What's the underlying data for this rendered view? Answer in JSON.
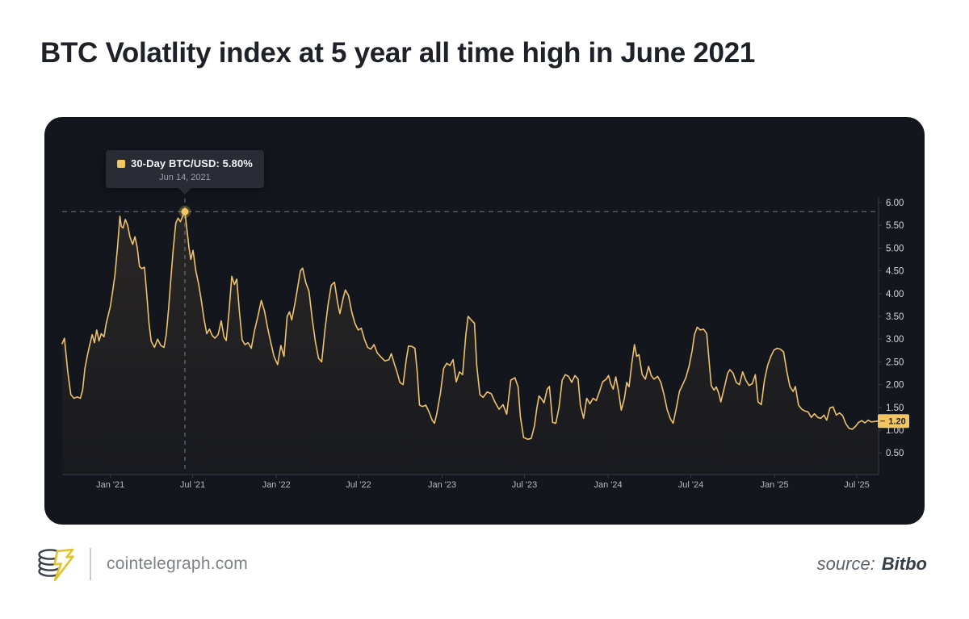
{
  "title": "BTC Volatlity index at 5 year all time high in June 2021",
  "footer": {
    "brand": "cointelegraph.com",
    "logo": "cointelegraph-coin-lightning",
    "source_label": "source:",
    "source_value": "Bitbo"
  },
  "chart_data": {
    "type": "line",
    "series_name": "30-Day BTC/USD",
    "x_range": [
      "2020-09-17",
      "2025-08-18"
    ],
    "ylim": [
      0,
      6.35
    ],
    "grid": false,
    "legend_position": "tooltip",
    "y_ticks": [
      {
        "label": "6.00",
        "value": 6.0
      },
      {
        "label": "5.50",
        "value": 5.5
      },
      {
        "label": "5.00",
        "value": 5.0
      },
      {
        "label": "4.50",
        "value": 4.5
      },
      {
        "label": "4.00",
        "value": 4.0
      },
      {
        "label": "3.50",
        "value": 3.5
      },
      {
        "label": "3.00",
        "value": 3.0
      },
      {
        "label": "2.50",
        "value": 2.5
      },
      {
        "label": "2.00",
        "value": 2.0
      },
      {
        "label": "1.50",
        "value": 1.5
      },
      {
        "label": "1.00",
        "value": 1.0
      },
      {
        "label": "0.50",
        "value": 0.5
      }
    ],
    "x_ticks": [
      {
        "label": "Jan '21",
        "date": "2021-01-01"
      },
      {
        "label": "Jul '21",
        "date": "2021-07-01"
      },
      {
        "label": "Jan '22",
        "date": "2022-01-01"
      },
      {
        "label": "Jul '22",
        "date": "2022-07-01"
      },
      {
        "label": "Jan '23",
        "date": "2023-01-01"
      },
      {
        "label": "Jul '23",
        "date": "2023-07-01"
      },
      {
        "label": "Jan '24",
        "date": "2024-01-01"
      },
      {
        "label": "Jul '24",
        "date": "2024-07-01"
      },
      {
        "label": "Jan '25",
        "date": "2025-01-01"
      },
      {
        "label": "Jul '25",
        "date": "2025-07-01"
      }
    ],
    "highlight": {
      "tooltip_label": "30-Day BTC/USD: 5.80%",
      "tooltip_date": "Jun 14, 2021",
      "date": "2021-06-14",
      "value": 5.8
    },
    "last_value_badge": {
      "label": "1.20",
      "value": 1.2
    },
    "colors": {
      "panel_bg": "#14161d",
      "line": "#edc26c",
      "marker": "#f3c75f",
      "badge_bg": "#f2c560",
      "badge_text": "#1d1f24",
      "axis": "#383c45",
      "tick_text": "#d6d8dd",
      "x_tick_text": "#b7bac2",
      "crosshair": "#9ca3af"
    },
    "points": [
      [
        "2020-09-17",
        2.9
      ],
      [
        "2020-09-22",
        3.02
      ],
      [
        "2020-09-29",
        2.3
      ],
      [
        "2020-10-06",
        1.78
      ],
      [
        "2020-10-13",
        1.7
      ],
      [
        "2020-10-20",
        1.73
      ],
      [
        "2020-10-27",
        1.7
      ],
      [
        "2020-11-01",
        1.88
      ],
      [
        "2020-11-06",
        2.35
      ],
      [
        "2020-11-11",
        2.62
      ],
      [
        "2020-11-16",
        2.85
      ],
      [
        "2020-11-22",
        3.1
      ],
      [
        "2020-11-27",
        2.92
      ],
      [
        "2020-12-02",
        3.2
      ],
      [
        "2020-12-07",
        2.96
      ],
      [
        "2020-12-12",
        3.12
      ],
      [
        "2020-12-18",
        3.05
      ],
      [
        "2020-12-23",
        3.35
      ],
      [
        "2021-01-01",
        3.72
      ],
      [
        "2021-01-06",
        4.05
      ],
      [
        "2021-01-11",
        4.4
      ],
      [
        "2021-01-17",
        5.05
      ],
      [
        "2021-01-22",
        5.7
      ],
      [
        "2021-01-25",
        5.48
      ],
      [
        "2021-01-29",
        5.44
      ],
      [
        "2021-02-03",
        5.63
      ],
      [
        "2021-02-08",
        5.5
      ],
      [
        "2021-02-13",
        5.25
      ],
      [
        "2021-02-19",
        5.08
      ],
      [
        "2021-02-24",
        5.25
      ],
      [
        "2021-03-01",
        5.02
      ],
      [
        "2021-03-06",
        4.6
      ],
      [
        "2021-03-11",
        4.55
      ],
      [
        "2021-03-17",
        4.58
      ],
      [
        "2021-03-22",
        4.0
      ],
      [
        "2021-03-27",
        3.35
      ],
      [
        "2021-04-01",
        2.95
      ],
      [
        "2021-04-08",
        2.82
      ],
      [
        "2021-04-15",
        3.0
      ],
      [
        "2021-04-22",
        2.86
      ],
      [
        "2021-04-29",
        2.82
      ],
      [
        "2021-05-04",
        3.1
      ],
      [
        "2021-05-09",
        3.65
      ],
      [
        "2021-05-14",
        4.3
      ],
      [
        "2021-05-19",
        4.95
      ],
      [
        "2021-05-25",
        5.55
      ],
      [
        "2021-05-30",
        5.66
      ],
      [
        "2021-06-04",
        5.58
      ],
      [
        "2021-06-09",
        5.7
      ],
      [
        "2021-06-14",
        5.8
      ],
      [
        "2021-06-18",
        5.45
      ],
      [
        "2021-06-23",
        5.0
      ],
      [
        "2021-06-27",
        4.75
      ],
      [
        "2021-07-02",
        4.95
      ],
      [
        "2021-07-08",
        4.5
      ],
      [
        "2021-07-14",
        4.22
      ],
      [
        "2021-07-20",
        3.85
      ],
      [
        "2021-07-26",
        3.45
      ],
      [
        "2021-08-01",
        3.12
      ],
      [
        "2021-08-07",
        3.22
      ],
      [
        "2021-08-13",
        3.08
      ],
      [
        "2021-08-19",
        3.02
      ],
      [
        "2021-08-26",
        3.1
      ],
      [
        "2021-09-02",
        3.4
      ],
      [
        "2021-09-08",
        3.05
      ],
      [
        "2021-09-13",
        2.97
      ],
      [
        "2021-09-19",
        3.6
      ],
      [
        "2021-09-25",
        4.38
      ],
      [
        "2021-10-01",
        4.2
      ],
      [
        "2021-10-06",
        4.32
      ],
      [
        "2021-10-12",
        3.6
      ],
      [
        "2021-10-18",
        2.98
      ],
      [
        "2021-10-24",
        2.88
      ],
      [
        "2021-10-31",
        2.92
      ],
      [
        "2021-11-07",
        2.8
      ],
      [
        "2021-11-14",
        3.18
      ],
      [
        "2021-11-22",
        3.52
      ],
      [
        "2021-11-29",
        3.85
      ],
      [
        "2021-12-06",
        3.62
      ],
      [
        "2021-12-13",
        3.25
      ],
      [
        "2021-12-20",
        2.92
      ],
      [
        "2021-12-27",
        2.62
      ],
      [
        "2022-01-04",
        2.44
      ],
      [
        "2022-01-11",
        2.86
      ],
      [
        "2022-01-18",
        2.62
      ],
      [
        "2022-01-25",
        3.5
      ],
      [
        "2022-01-30",
        3.6
      ],
      [
        "2022-02-04",
        3.42
      ],
      [
        "2022-02-11",
        3.78
      ],
      [
        "2022-02-18",
        4.2
      ],
      [
        "2022-02-23",
        4.5
      ],
      [
        "2022-02-28",
        4.56
      ],
      [
        "2022-03-07",
        4.24
      ],
      [
        "2022-03-14",
        4.05
      ],
      [
        "2022-03-21",
        3.45
      ],
      [
        "2022-03-28",
        2.95
      ],
      [
        "2022-04-04",
        2.58
      ],
      [
        "2022-04-11",
        2.5
      ],
      [
        "2022-04-18",
        3.2
      ],
      [
        "2022-04-25",
        3.76
      ],
      [
        "2022-05-02",
        4.18
      ],
      [
        "2022-05-09",
        4.25
      ],
      [
        "2022-05-16",
        3.8
      ],
      [
        "2022-05-21",
        3.56
      ],
      [
        "2022-05-28",
        3.9
      ],
      [
        "2022-06-02",
        4.08
      ],
      [
        "2022-06-09",
        3.96
      ],
      [
        "2022-06-16",
        3.6
      ],
      [
        "2022-06-23",
        3.35
      ],
      [
        "2022-06-30",
        3.2
      ],
      [
        "2022-07-07",
        3.24
      ],
      [
        "2022-07-14",
        3.0
      ],
      [
        "2022-07-21",
        2.82
      ],
      [
        "2022-07-28",
        2.78
      ],
      [
        "2022-08-04",
        2.88
      ],
      [
        "2022-08-11",
        2.7
      ],
      [
        "2022-08-20",
        2.6
      ],
      [
        "2022-08-28",
        2.52
      ],
      [
        "2022-09-06",
        2.55
      ],
      [
        "2022-09-11",
        2.68
      ],
      [
        "2022-09-18",
        2.45
      ],
      [
        "2022-09-23",
        2.3
      ],
      [
        "2022-09-30",
        2.05
      ],
      [
        "2022-10-07",
        2.0
      ],
      [
        "2022-10-14",
        2.55
      ],
      [
        "2022-10-19",
        2.85
      ],
      [
        "2022-10-26",
        2.84
      ],
      [
        "2022-11-02",
        2.8
      ],
      [
        "2022-11-07",
        2.3
      ],
      [
        "2022-11-12",
        1.55
      ],
      [
        "2022-11-19",
        1.52
      ],
      [
        "2022-11-26",
        1.55
      ],
      [
        "2022-12-03",
        1.4
      ],
      [
        "2022-12-10",
        1.22
      ],
      [
        "2022-12-15",
        1.15
      ],
      [
        "2022-12-20",
        1.35
      ],
      [
        "2022-12-28",
        1.8
      ],
      [
        "2023-01-04",
        2.35
      ],
      [
        "2023-01-11",
        2.47
      ],
      [
        "2023-01-18",
        2.42
      ],
      [
        "2023-01-25",
        2.55
      ],
      [
        "2023-02-01",
        2.06
      ],
      [
        "2023-02-08",
        2.28
      ],
      [
        "2023-02-15",
        2.22
      ],
      [
        "2023-02-22",
        3.1
      ],
      [
        "2023-02-27",
        3.5
      ],
      [
        "2023-03-06",
        3.42
      ],
      [
        "2023-03-13",
        3.35
      ],
      [
        "2023-03-18",
        2.42
      ],
      [
        "2023-03-25",
        1.78
      ],
      [
        "2023-04-01",
        1.72
      ],
      [
        "2023-04-10",
        1.84
      ],
      [
        "2023-04-19",
        1.8
      ],
      [
        "2023-04-27",
        1.62
      ],
      [
        "2023-05-06",
        1.46
      ],
      [
        "2023-05-15",
        1.56
      ],
      [
        "2023-05-23",
        1.35
      ],
      [
        "2023-06-01",
        2.1
      ],
      [
        "2023-06-10",
        2.15
      ],
      [
        "2023-06-17",
        1.95
      ],
      [
        "2023-06-22",
        1.3
      ],
      [
        "2023-06-29",
        0.84
      ],
      [
        "2023-07-08",
        0.8
      ],
      [
        "2023-07-16",
        0.82
      ],
      [
        "2023-07-23",
        1.1
      ],
      [
        "2023-07-28",
        1.47
      ],
      [
        "2023-08-02",
        1.75
      ],
      [
        "2023-08-08",
        1.68
      ],
      [
        "2023-08-13",
        1.6
      ],
      [
        "2023-08-20",
        1.9
      ],
      [
        "2023-08-25",
        1.96
      ],
      [
        "2023-09-01",
        1.17
      ],
      [
        "2023-09-08",
        1.15
      ],
      [
        "2023-09-15",
        1.5
      ],
      [
        "2023-09-22",
        2.1
      ],
      [
        "2023-09-29",
        2.22
      ],
      [
        "2023-10-06",
        2.18
      ],
      [
        "2023-10-13",
        2.05
      ],
      [
        "2023-10-20",
        2.2
      ],
      [
        "2023-10-27",
        2.12
      ],
      [
        "2023-11-01",
        1.55
      ],
      [
        "2023-11-08",
        1.26
      ],
      [
        "2023-11-15",
        1.7
      ],
      [
        "2023-11-22",
        1.58
      ],
      [
        "2023-11-29",
        1.7
      ],
      [
        "2023-12-06",
        1.65
      ],
      [
        "2023-12-13",
        1.85
      ],
      [
        "2023-12-20",
        2.06
      ],
      [
        "2023-12-28",
        2.12
      ],
      [
        "2024-01-02",
        2.2
      ],
      [
        "2024-01-07",
        2.02
      ],
      [
        "2024-01-12",
        1.9
      ],
      [
        "2024-01-18",
        2.17
      ],
      [
        "2024-01-24",
        1.85
      ],
      [
        "2024-01-30",
        1.44
      ],
      [
        "2024-02-06",
        1.7
      ],
      [
        "2024-02-11",
        2.05
      ],
      [
        "2024-02-16",
        1.95
      ],
      [
        "2024-02-22",
        2.45
      ],
      [
        "2024-02-28",
        2.88
      ],
      [
        "2024-03-04",
        2.62
      ],
      [
        "2024-03-09",
        2.66
      ],
      [
        "2024-03-16",
        2.22
      ],
      [
        "2024-03-23",
        2.12
      ],
      [
        "2024-03-30",
        2.4
      ],
      [
        "2024-04-05",
        2.2
      ],
      [
        "2024-04-11",
        2.12
      ],
      [
        "2024-04-19",
        2.18
      ],
      [
        "2024-04-26",
        2.05
      ],
      [
        "2024-05-03",
        1.78
      ],
      [
        "2024-05-10",
        1.45
      ],
      [
        "2024-05-17",
        1.25
      ],
      [
        "2024-05-23",
        1.15
      ],
      [
        "2024-05-30",
        1.48
      ],
      [
        "2024-06-06",
        1.85
      ],
      [
        "2024-06-13",
        2.0
      ],
      [
        "2024-06-20",
        2.15
      ],
      [
        "2024-06-27",
        2.4
      ],
      [
        "2024-07-04",
        2.75
      ],
      [
        "2024-07-09",
        3.1
      ],
      [
        "2024-07-15",
        3.26
      ],
      [
        "2024-07-22",
        3.2
      ],
      [
        "2024-07-29",
        3.22
      ],
      [
        "2024-08-05",
        3.12
      ],
      [
        "2024-08-10",
        2.55
      ],
      [
        "2024-08-15",
        1.98
      ],
      [
        "2024-08-21",
        1.88
      ],
      [
        "2024-08-26",
        1.95
      ],
      [
        "2024-08-31",
        1.82
      ],
      [
        "2024-09-05",
        1.62
      ],
      [
        "2024-09-13",
        1.95
      ],
      [
        "2024-09-20",
        2.25
      ],
      [
        "2024-09-25",
        2.33
      ],
      [
        "2024-10-02",
        2.25
      ],
      [
        "2024-10-09",
        2.05
      ],
      [
        "2024-10-16",
        2.0
      ],
      [
        "2024-10-23",
        2.28
      ],
      [
        "2024-10-30",
        2.1
      ],
      [
        "2024-11-06",
        1.98
      ],
      [
        "2024-11-13",
        2.02
      ],
      [
        "2024-11-20",
        2.22
      ],
      [
        "2024-11-26",
        1.62
      ],
      [
        "2024-12-03",
        1.56
      ],
      [
        "2024-12-10",
        2.1
      ],
      [
        "2024-12-17",
        2.42
      ],
      [
        "2024-12-24",
        2.62
      ],
      [
        "2024-12-31",
        2.76
      ],
      [
        "2025-01-07",
        2.8
      ],
      [
        "2025-01-14",
        2.78
      ],
      [
        "2025-01-21",
        2.72
      ],
      [
        "2025-01-28",
        2.3
      ],
      [
        "2025-02-04",
        1.96
      ],
      [
        "2025-02-11",
        1.85
      ],
      [
        "2025-02-16",
        1.96
      ],
      [
        "2025-02-23",
        1.55
      ],
      [
        "2025-03-02",
        1.46
      ],
      [
        "2025-03-09",
        1.42
      ],
      [
        "2025-03-16",
        1.4
      ],
      [
        "2025-03-23",
        1.28
      ],
      [
        "2025-03-30",
        1.36
      ],
      [
        "2025-04-06",
        1.28
      ],
      [
        "2025-04-13",
        1.26
      ],
      [
        "2025-04-20",
        1.33
      ],
      [
        "2025-04-26",
        1.22
      ],
      [
        "2025-05-03",
        1.49
      ],
      [
        "2025-05-10",
        1.51
      ],
      [
        "2025-05-17",
        1.33
      ],
      [
        "2025-05-24",
        1.38
      ],
      [
        "2025-05-31",
        1.32
      ],
      [
        "2025-06-07",
        1.14
      ],
      [
        "2025-06-14",
        1.04
      ],
      [
        "2025-06-21",
        1.02
      ],
      [
        "2025-06-28",
        1.08
      ],
      [
        "2025-07-05",
        1.17
      ],
      [
        "2025-07-12",
        1.21
      ],
      [
        "2025-07-19",
        1.16
      ],
      [
        "2025-07-26",
        1.22
      ],
      [
        "2025-08-02",
        1.18
      ],
      [
        "2025-08-16",
        1.2
      ]
    ]
  }
}
